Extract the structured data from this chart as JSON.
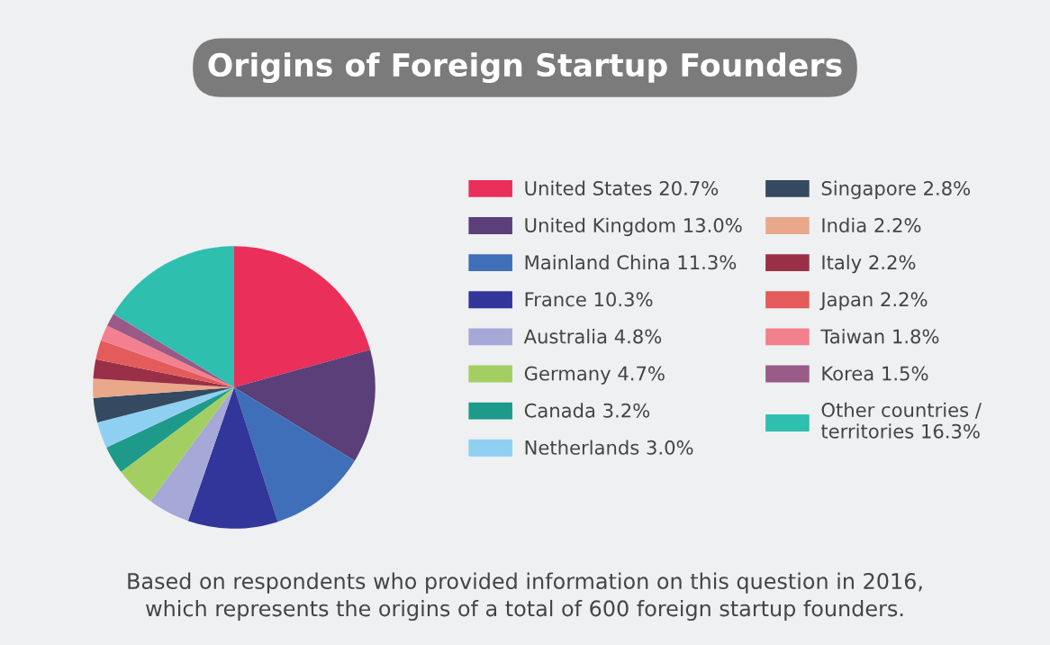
{
  "chart_data": {
    "type": "pie",
    "title": "Origins of Foreign Startup Founders",
    "categories": [
      "United States",
      "United Kingdom",
      "Mainland China",
      "France",
      "Australia",
      "Germany",
      "Canada",
      "Netherlands",
      "Singapore",
      "India",
      "Italy",
      "Japan",
      "Taiwan",
      "Korea",
      "Other countries /\nterritories"
    ],
    "values": [
      20.7,
      13.0,
      11.3,
      10.3,
      4.8,
      4.7,
      3.2,
      3.0,
      2.8,
      2.2,
      2.2,
      2.2,
      1.8,
      1.5,
      16.3
    ],
    "value_labels": [
      "20.7%",
      "13.0%",
      "11.3%",
      "10.3%",
      "4.8%",
      "4.7%",
      "3.2%",
      "3.0%",
      "2.8%",
      "2.2%",
      "2.2%",
      "2.2%",
      "1.8%",
      "1.5%",
      "16.3%"
    ],
    "colors": [
      "#ea2f5a",
      "#5b3f78",
      "#3f6fb8",
      "#32369a",
      "#a6a8d8",
      "#a3cf62",
      "#1e9a8a",
      "#8fd0f2",
      "#354a60",
      "#e9a88a",
      "#9a3048",
      "#e35b5b",
      "#f3808f",
      "#9a5a88",
      "#2ebfae"
    ],
    "legend": "right",
    "annotations": [
      "Based on respondents who provided information on this question in 2016,\nwhich represents the origins of a total of 600 foreign startup founders."
    ]
  }
}
